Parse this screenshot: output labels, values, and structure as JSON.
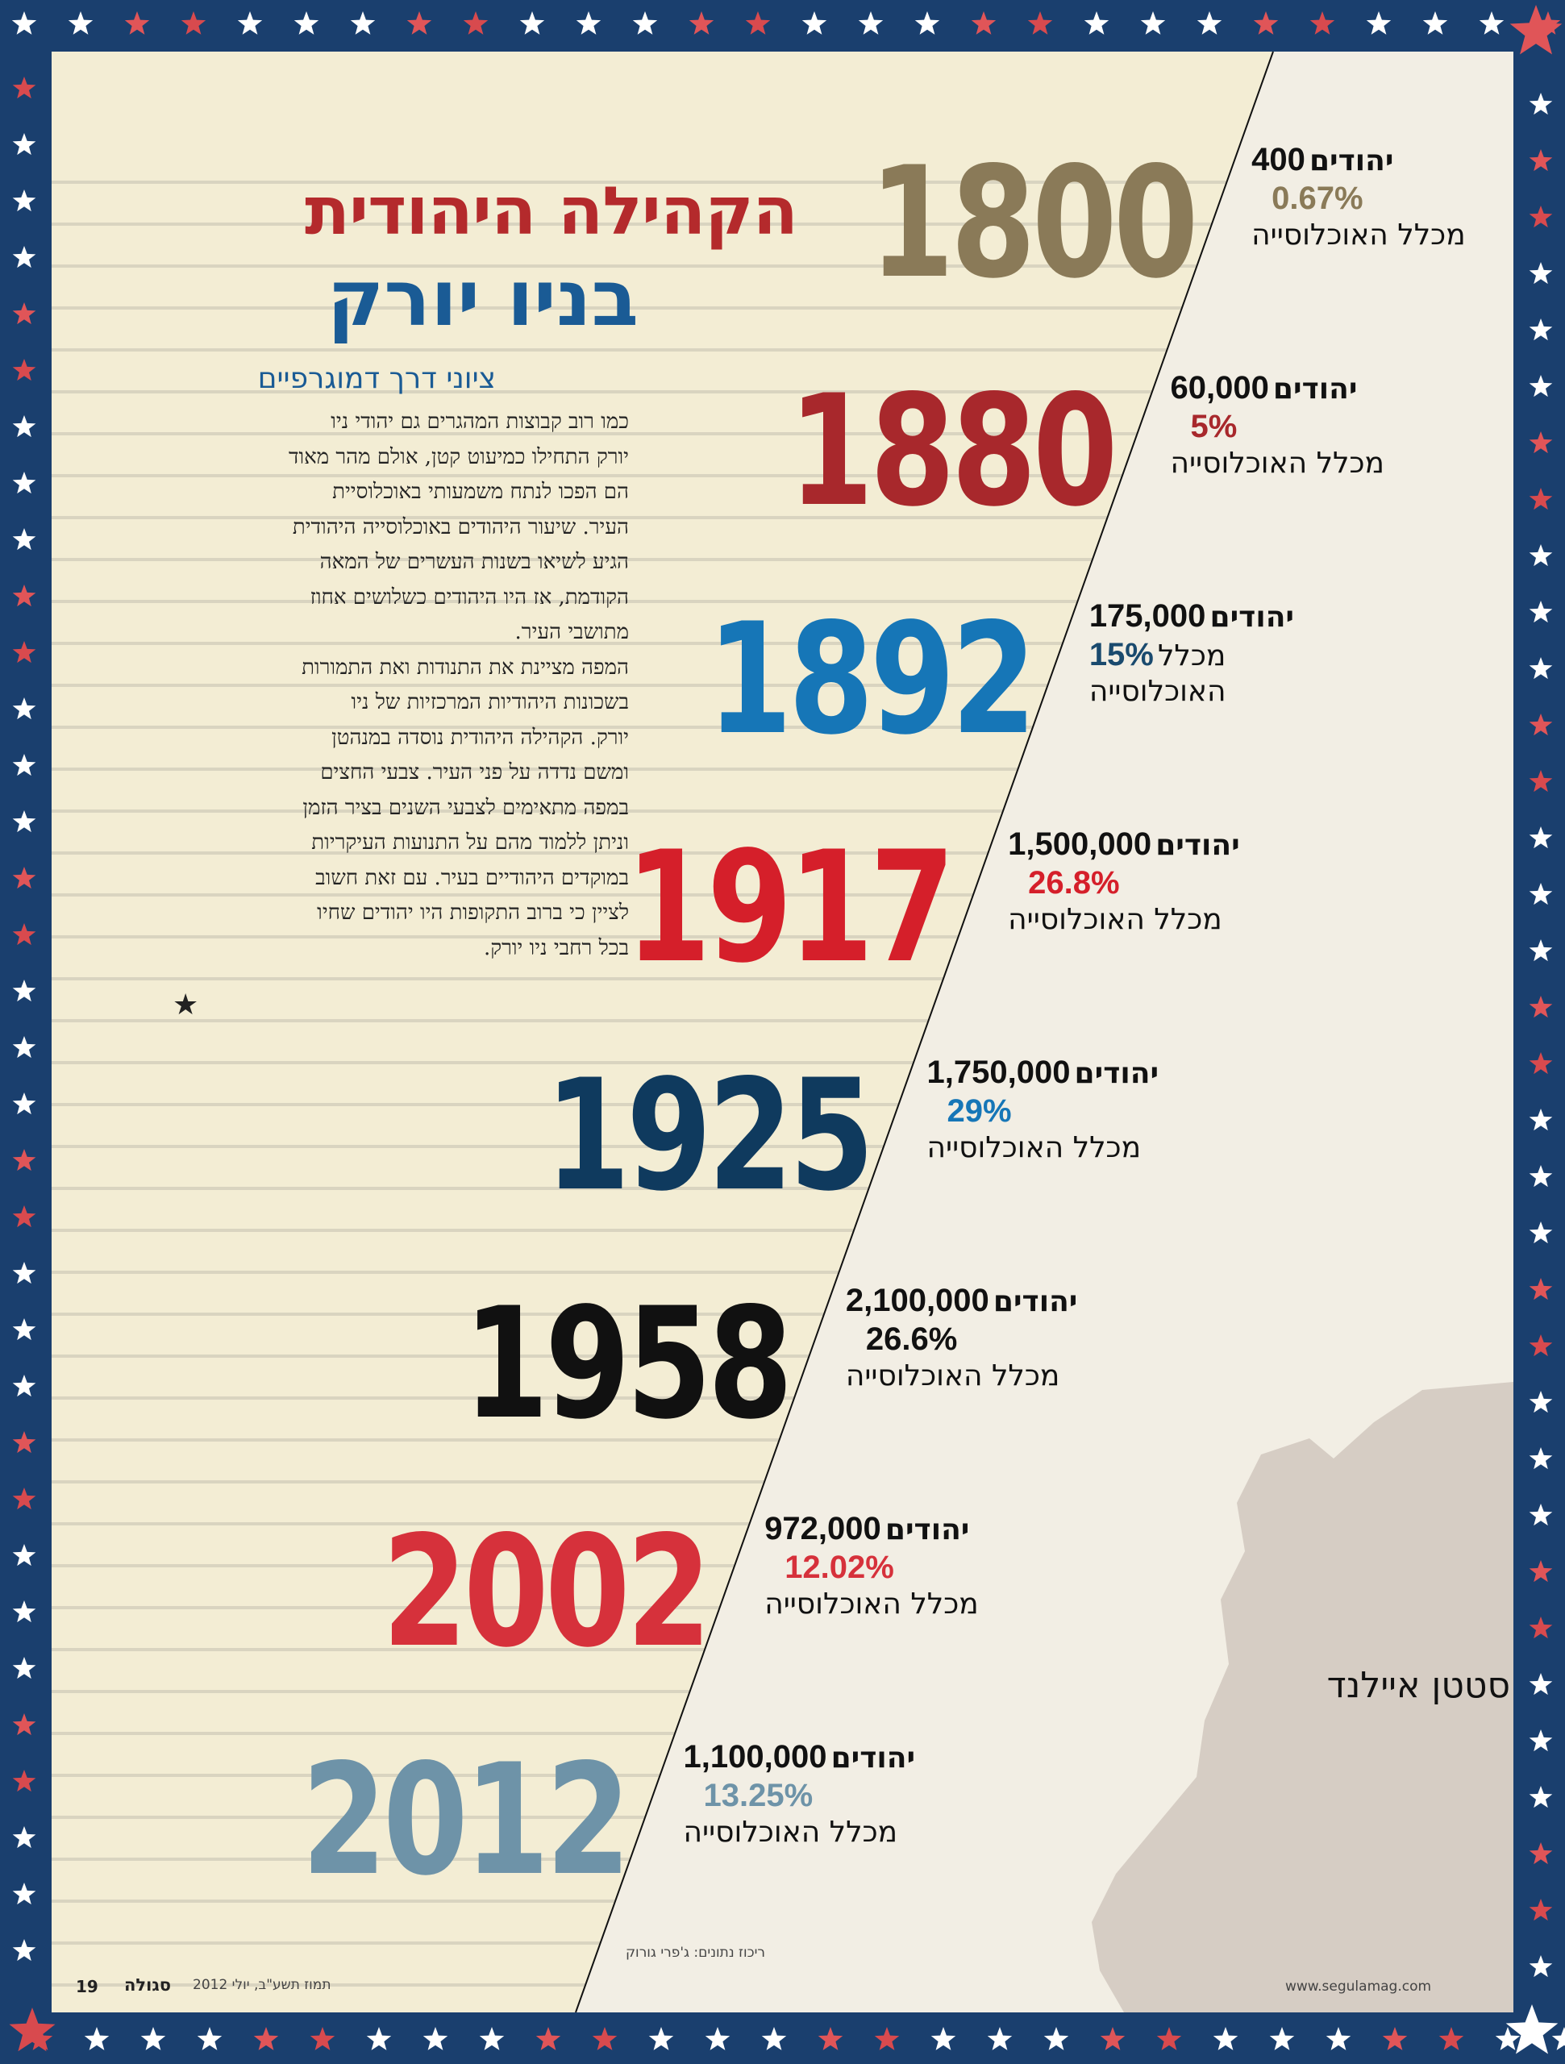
{
  "header": {
    "title_line1": "הקהילה היהודית",
    "title_line2": "בניו יורק",
    "subtitle": "ציוני דרך דמוגרפיים"
  },
  "intro": {
    "lines": [
      "כמו רוב קבוצות המהגרים גם יהודי ניו",
      "יורק התחילו כמיעוט קטן, אולם מהר מאוד",
      "הם הפכו לנתח משמעותי באוכלוסיית",
      "העיר. שיעור היהודים באוכלוסייה היהודית",
      "הגיע לשיאו בשנות העשרים של המאה",
      "הקודמת, אז היו היהודים כשלושים אחוז",
      "מתושבי העיר.",
      "המפה מציינת את התנודות ואת התמורות",
      "בשכונות היהודיות המרכזיות של ניו",
      "יורק. הקהילה היהודית נוסדה במנהטן",
      "ומשם נדדה על פני העיר. צבעי החצים",
      "במפה מתאימים לצבעי השנים בציר הזמן",
      "וניתן ללמוד מהם על התנועות העיקריות",
      "במוקדים היהודיים בעיר. עם זאת חשוב",
      "לציין כי ברוב התקופות היו יהודים שחיו",
      "בכל רחבי ניו יורק."
    ],
    "end_mark": "★"
  },
  "timeline": [
    {
      "year": "1800",
      "count": "400",
      "jews_label": "יהודים",
      "percent": "0.67%",
      "pop_label": "מכלל האוכלוסייה",
      "color": "#8a7a58",
      "pct_color": "#8a7a58"
    },
    {
      "year": "1880",
      "count": "60,000",
      "jews_label": "יהודים",
      "percent": "5%",
      "pop_label": "מכלל האוכלוסייה",
      "color": "#a8282c",
      "pct_color": "#a8282c"
    },
    {
      "year": "1892",
      "count": "175,000",
      "jews_label": "יהודים",
      "percent": "15%",
      "pop_label_a": "מכלל",
      "pop_label_b": "האוכלוסייה",
      "color": "#1676b7",
      "pct_color": "#1a4a6e"
    },
    {
      "year": "1917",
      "count": "1,500,000",
      "jews_label": "יהודים",
      "percent": "26.8%",
      "pop_label": "מכלל האוכלוסייה",
      "color": "#d51f2a",
      "pct_color": "#d51f2a"
    },
    {
      "year": "1925",
      "count": "1,750,000",
      "jews_label": "יהודים",
      "percent": "29%",
      "pop_label": "מכלל האוכלוסייה",
      "color": "#0f3a5e",
      "pct_color": "#1676b7"
    },
    {
      "year": "1958",
      "count": "2,100,000",
      "jews_label": "יהודים",
      "percent": "26.6%",
      "pop_label": "מכלל האוכלוסייה",
      "color": "#111111",
      "pct_color": "#111111"
    },
    {
      "year": "2002",
      "count": "972,000",
      "jews_label": "יהודים",
      "percent": "12.02%",
      "pop_label": "מכלל האוכלוסייה",
      "color": "#d6313b",
      "pct_color": "#d6313b"
    },
    {
      "year": "2012",
      "count": "1,100,000",
      "jews_label": "יהודים",
      "percent": "13.25%",
      "pop_label": "מכלל האוכלוסייה",
      "color": "#6e93a8",
      "pct_color": "#6e93a8"
    }
  ],
  "map": {
    "label": "סטטן איילנד"
  },
  "footer": {
    "page_number": "19",
    "magazine": "סגולה",
    "date": "תמוז תשע\"ב, יולי 2012",
    "credit": "ריכוז נתונים: ג'פרי גורוק",
    "website": "www.segulamag.com"
  },
  "colors": {
    "title_red": "#b42a2c",
    "title_blue": "#1a5b95",
    "border_navy": "#1a3f6e",
    "paper": "#f3edd4"
  }
}
